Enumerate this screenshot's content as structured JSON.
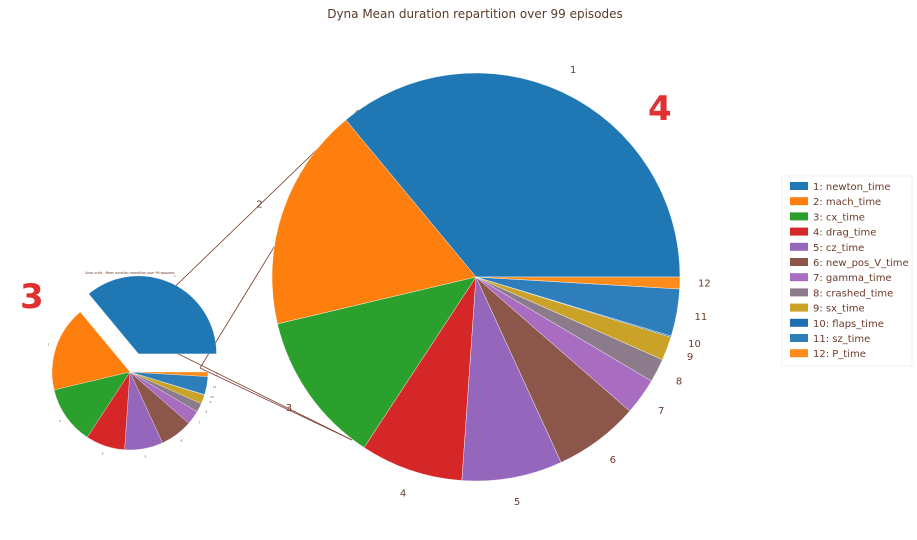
{
  "chart_data": [
    {
      "type": "pie",
      "title": "Dyna Mean duration repartition over 99 episodes",
      "label_texts": [
        "1",
        "2",
        "3",
        "4",
        "5",
        "6",
        "7",
        "8",
        "9",
        "10",
        "11",
        "12"
      ],
      "slices": [
        {
          "id": "1",
          "name": "1: newton_time",
          "value": 38.5,
          "color": "#1f77b4"
        },
        {
          "id": "2",
          "name": "2: mach_time",
          "value": 18.9,
          "color": "#ff7f0e"
        },
        {
          "id": "3",
          "name": "3: cx_time",
          "value": 12.9,
          "color": "#2ca02c"
        },
        {
          "id": "4",
          "name": "4: drag_time",
          "value": 8.7,
          "color": "#d62728"
        },
        {
          "id": "5",
          "name": "5: cz_time",
          "value": 8.5,
          "color": "#9467bd"
        },
        {
          "id": "6",
          "name": "6: new_pos_V_time",
          "value": 7.2,
          "color": "#8c564b"
        },
        {
          "id": "7",
          "name": "7: gamma_time",
          "value": 3.1,
          "color": "#a86cc1"
        },
        {
          "id": "8",
          "name": "8: crashed_time",
          "value": 2.0,
          "color": "#8c7b8b"
        },
        {
          "id": "9",
          "name": "9: sx_time",
          "value": 2.0,
          "color": "#c9a227"
        },
        {
          "id": "10",
          "name": "10: flaps_time",
          "value": 0.1,
          "color": "#1f6fb0"
        },
        {
          "id": "11",
          "name": "11: sz_time",
          "value": 4.0,
          "color": "#2f7ebc"
        },
        {
          "id": "12",
          "name": "12: P_time",
          "value": 1.0,
          "color": "#ff8c1a"
        }
      ],
      "legend_position": "right"
    }
  ],
  "annotations": {
    "left_number": "3",
    "right_number": "4"
  },
  "mini_chart": {
    "title": "Actor-critic · Mean duration repartition over 99 episodes"
  },
  "colors": {
    "connector": "#7b3b2a",
    "annotation": "#e03030"
  }
}
